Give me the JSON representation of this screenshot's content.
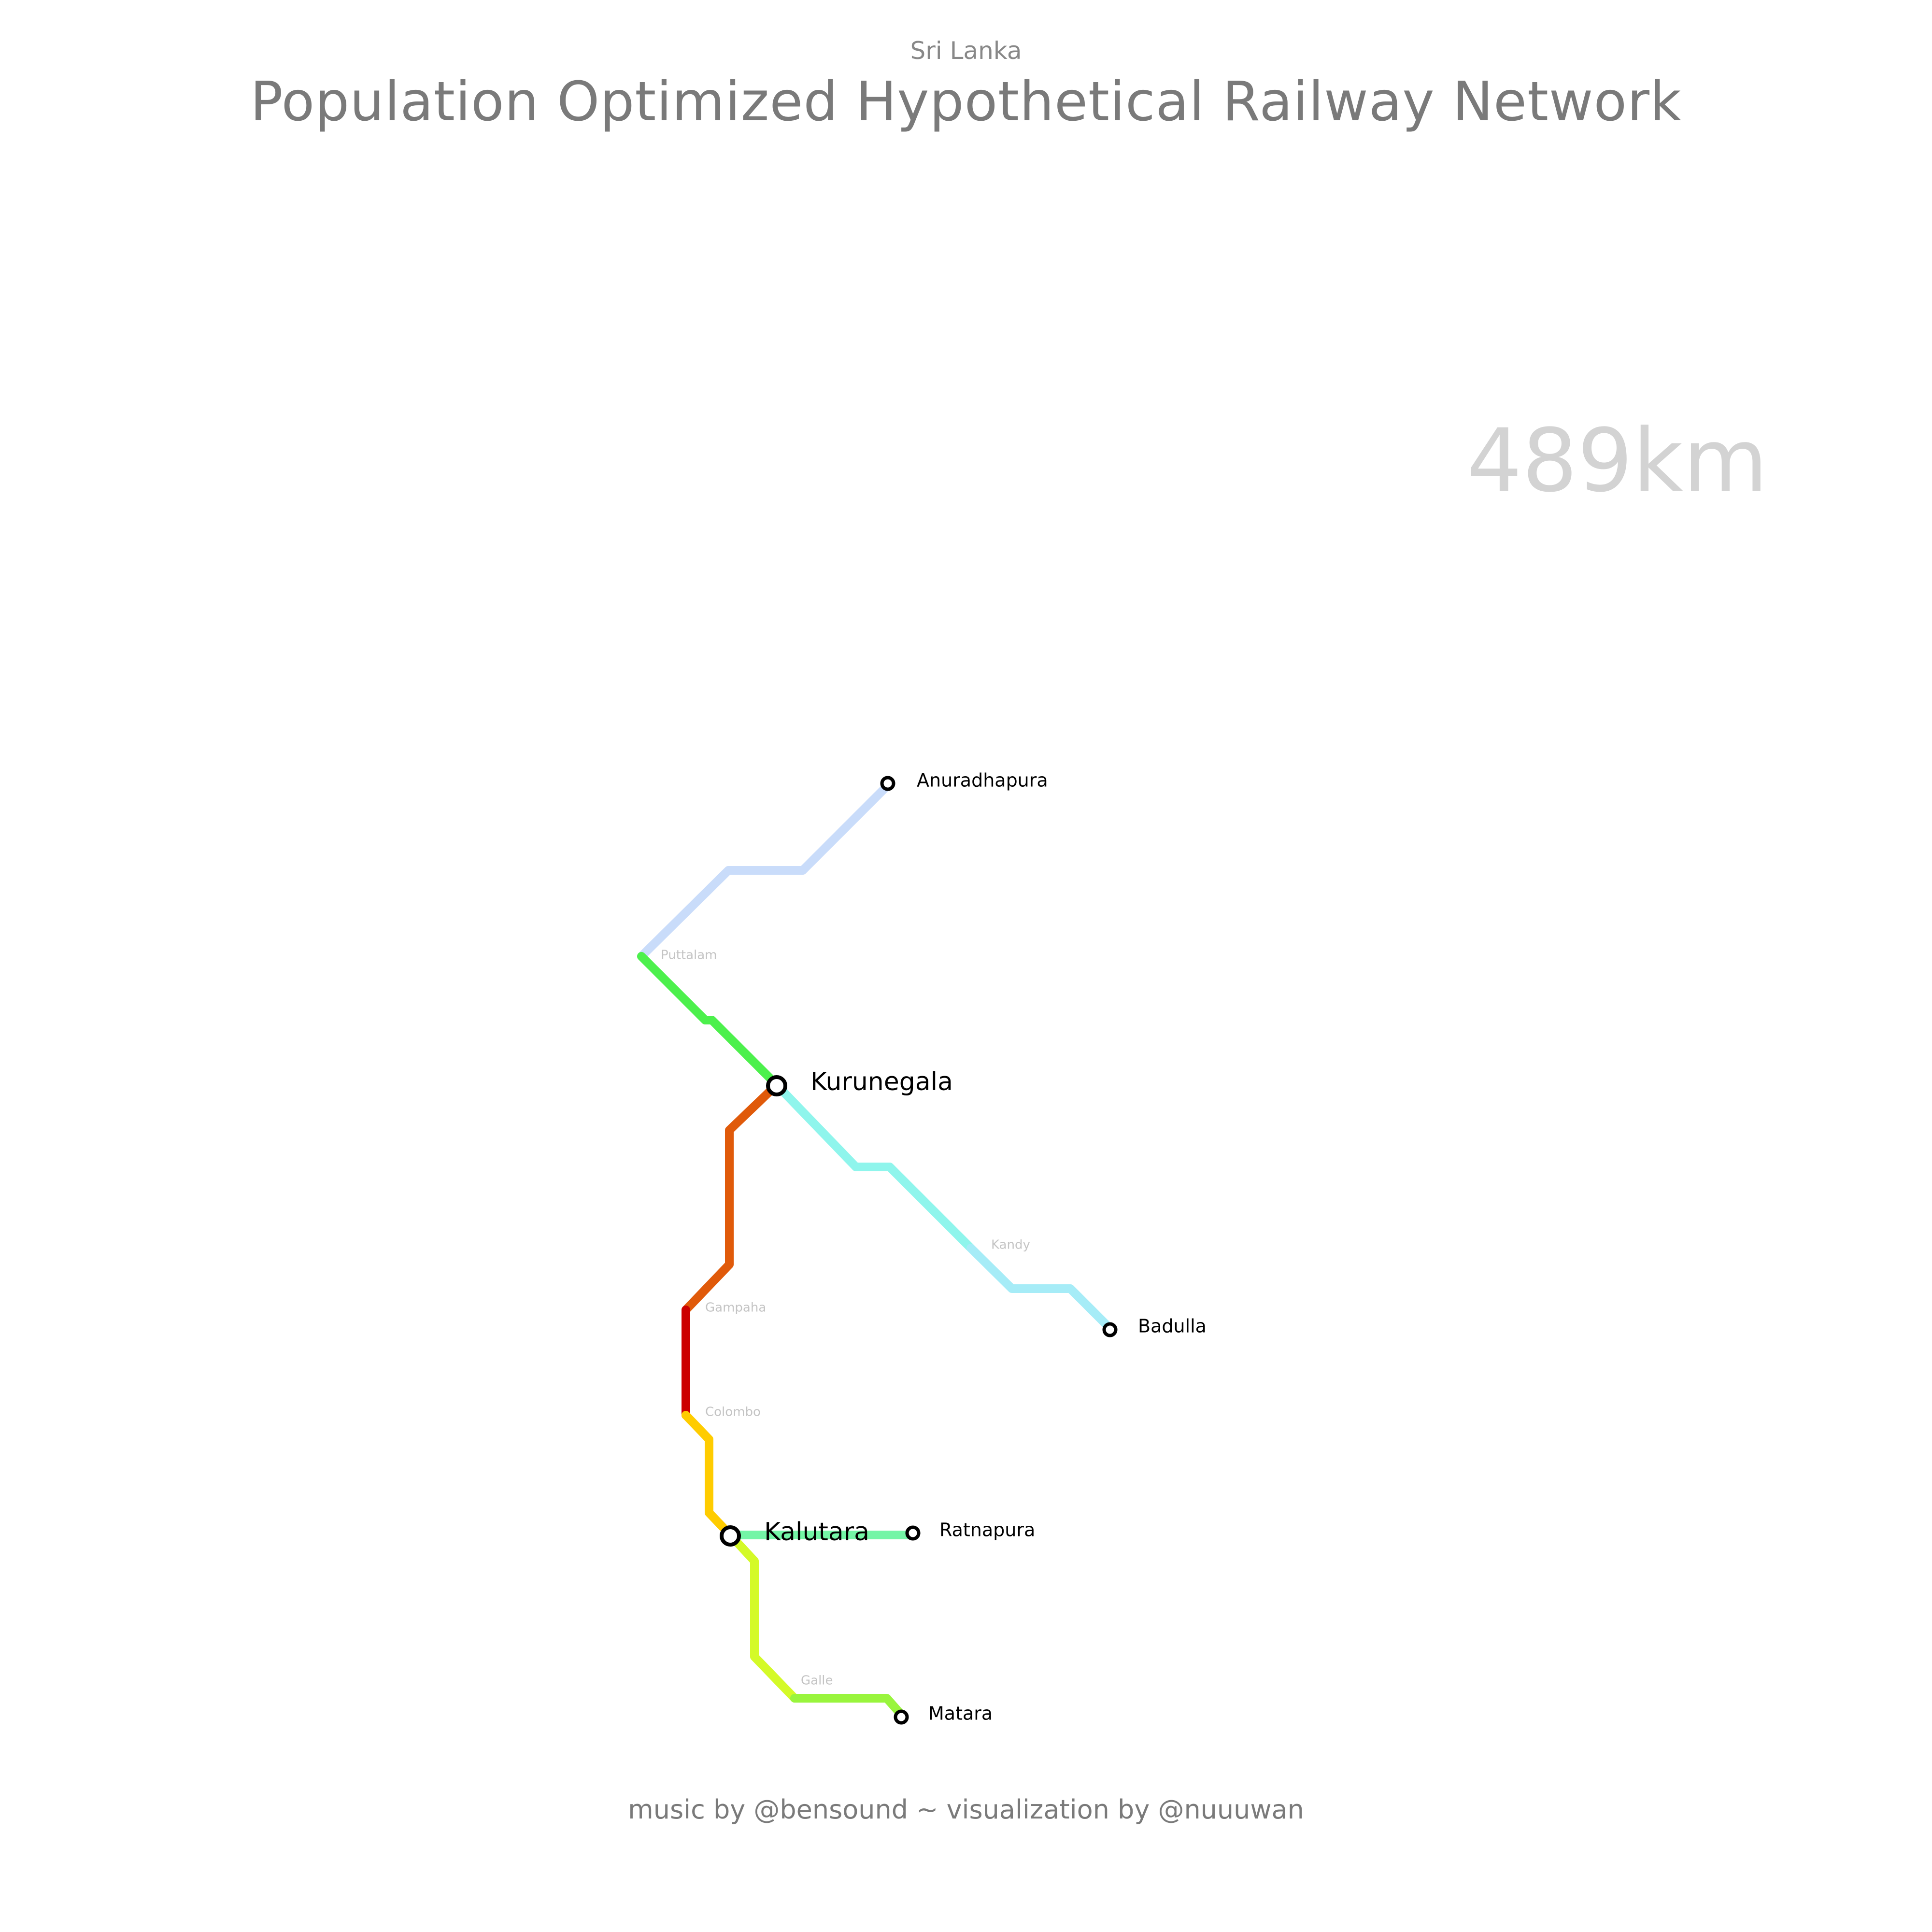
{
  "header": {
    "subtitle": "Sri Lanka",
    "title": "Population Optimized Hypothetical Railway Network"
  },
  "distance": "489km",
  "footer": {
    "credit": "music by @bensound ~ visualization by @nuuuwan"
  },
  "stations": [
    {
      "id": "anuradhapura",
      "label": "Anuradhapura",
      "kind": "terminal"
    },
    {
      "id": "puttalam",
      "label": "Puttalam",
      "kind": "minor"
    },
    {
      "id": "kurunegala",
      "label": "Kurunegala",
      "kind": "major"
    },
    {
      "id": "kandy",
      "label": "Kandy",
      "kind": "minor"
    },
    {
      "id": "badulla",
      "label": "Badulla",
      "kind": "terminal"
    },
    {
      "id": "gampaha",
      "label": "Gampaha",
      "kind": "minor"
    },
    {
      "id": "colombo",
      "label": "Colombo",
      "kind": "minor"
    },
    {
      "id": "kalutara",
      "label": "Kalutara",
      "kind": "major"
    },
    {
      "id": "ratnapura",
      "label": "Ratnapura",
      "kind": "terminal"
    },
    {
      "id": "galle",
      "label": "Galle",
      "kind": "minor"
    },
    {
      "id": "matara",
      "label": "Matara",
      "kind": "terminal"
    }
  ],
  "lines": [
    {
      "id": "puttalam-anuradhapura",
      "color": "#c9dcfa"
    },
    {
      "id": "puttalam-kurunegala",
      "color": "#4cf04c"
    },
    {
      "id": "kurunegala-kandy",
      "color": "#8ff5ec"
    },
    {
      "id": "kandy-badulla",
      "color": "#a6ecf7"
    },
    {
      "id": "kurunegala-gampaha",
      "color": "#e05a0a"
    },
    {
      "id": "gampaha-colombo",
      "color": "#cc0000"
    },
    {
      "id": "colombo-kalutara",
      "color": "#ffcc00"
    },
    {
      "id": "kalutara-ratnapura",
      "color": "#74f5a6"
    },
    {
      "id": "kalutara-galle",
      "color": "#d4fa28"
    },
    {
      "id": "galle-matara",
      "color": "#99f53d"
    }
  ]
}
